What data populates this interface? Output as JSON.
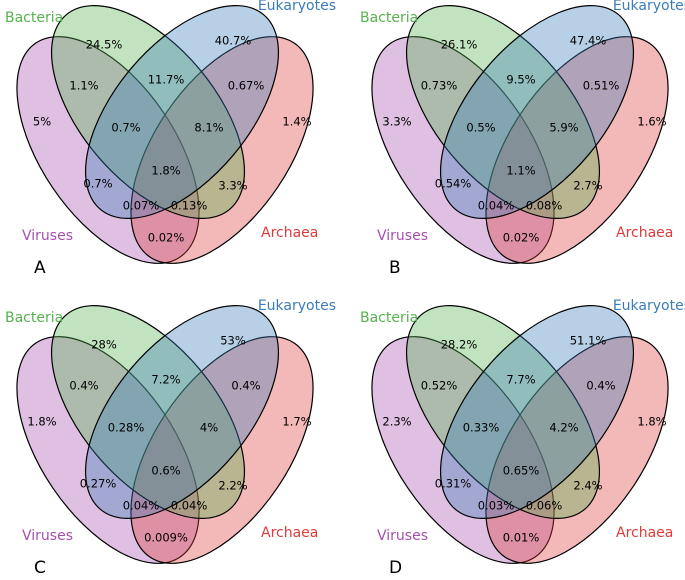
{
  "figure": {
    "colors": {
      "viruses": "#a64fae",
      "bacteria": "#55b24e",
      "eukaryotes": "#3b7dbb",
      "archaea": "#df3b3b"
    },
    "set_labels": {
      "bacteria": "Bacteria",
      "eukaryotes": "Eukaryotes",
      "viruses": "Viruses",
      "archaea": "Archaea"
    },
    "panels": [
      {
        "letter": "A",
        "regions": {
          "b_only": "24.5%",
          "e_only": "40.7%",
          "v_only": "5%",
          "a_only": "1.4%",
          "vb": "1.1%",
          "be": "11.7%",
          "ea": "0.67%",
          "vbe": "0.7%",
          "bea": "8.1%",
          "all": "1.8%",
          "ve": "0.7%",
          "ba": "3.3%",
          "vea": "0.07%",
          "vba": "0.13%",
          "va": "0.02%"
        }
      },
      {
        "letter": "B",
        "regions": {
          "b_only": "26.1%",
          "e_only": "47.4%",
          "v_only": "3.3%",
          "a_only": "1.6%",
          "vb": "0.73%",
          "be": "9.5%",
          "ea": "0.51%",
          "vbe": "0.5%",
          "bea": "5.9%",
          "all": "1.1%",
          "ve": "0.54%",
          "ba": "2.7%",
          "vea": "0.04%",
          "vba": "0.08%",
          "va": "0.02%"
        }
      },
      {
        "letter": "C",
        "regions": {
          "b_only": "28%",
          "e_only": "53%",
          "v_only": "1.8%",
          "a_only": "1.7%",
          "vb": "0.4%",
          "be": "7.2%",
          "ea": "0.4%",
          "vbe": "0.28%",
          "bea": "4%",
          "all": "0.6%",
          "ve": "0.27%",
          "ba": "2.2%",
          "vea": "0.04%",
          "vba": "0.04%",
          "va": "0.009%"
        }
      },
      {
        "letter": "D",
        "regions": {
          "b_only": "28.2%",
          "e_only": "51.1%",
          "v_only": "2.3%",
          "a_only": "1.8%",
          "vb": "0.52%",
          "be": "7.7%",
          "ea": "0.4%",
          "vbe": "0.33%",
          "bea": "4.2%",
          "all": "0.65%",
          "ve": "0.31%",
          "ba": "2.4%",
          "vea": "0.03%",
          "vba": "0.06%",
          "va": "0.01%"
        }
      }
    ]
  }
}
